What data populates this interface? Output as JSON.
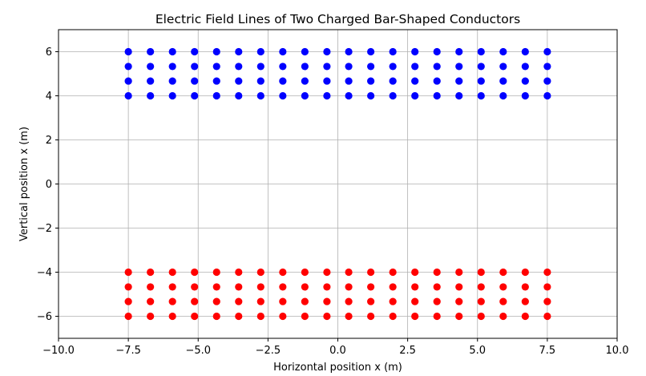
{
  "chart_data": {
    "type": "scatter",
    "title": "Electric Field Lines of Two Charged Bar-Shaped Conductors",
    "xlabel": "Horizontal position x (m)",
    "ylabel": "Vertical position x (m)",
    "xlim": [
      -10,
      10
    ],
    "ylim": [
      -7,
      7
    ],
    "xticks": [
      -10.0,
      -7.5,
      -5.0,
      -2.5,
      0.0,
      2.5,
      5.0,
      7.5,
      10.0
    ],
    "xtick_labels": [
      "−10.0",
      "−7.5",
      "−5.0",
      "−2.5",
      "0.0",
      "2.5",
      "5.0",
      "7.5",
      "10.0"
    ],
    "yticks": [
      -6,
      -4,
      -2,
      0,
      2,
      4,
      6
    ],
    "ytick_labels": [
      "−6",
      "−4",
      "−2",
      "0",
      "2",
      "4",
      "6"
    ],
    "grid": true,
    "x": [
      -7.5,
      -6.71,
      -5.92,
      -5.13,
      -4.34,
      -3.55,
      -2.76,
      -1.97,
      -1.18,
      -0.39,
      0.39,
      1.18,
      1.97,
      2.76,
      3.55,
      4.34,
      5.13,
      5.92,
      6.71,
      7.5
    ],
    "series": [
      {
        "color": "#0000ff",
        "y": [
          4.0,
          4.67,
          5.33,
          6.0
        ]
      },
      {
        "color": "#ff0000",
        "y": [
          -6.0,
          -5.33,
          -4.67,
          -4.0
        ]
      }
    ],
    "colors": {
      "grid": "#b0b0b0",
      "axes": "#000000"
    }
  }
}
